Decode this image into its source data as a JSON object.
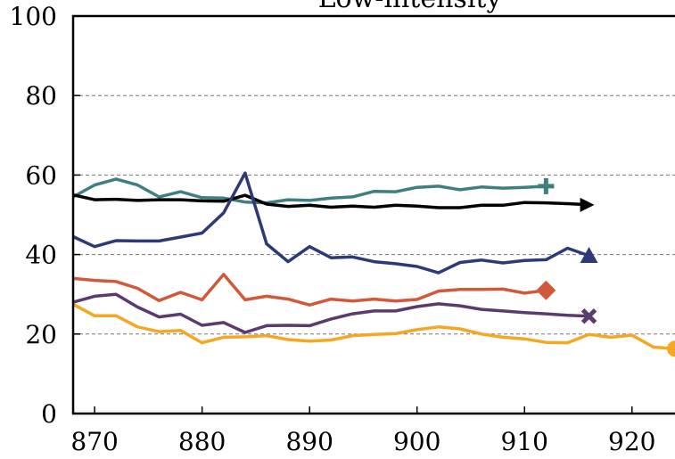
{
  "chart_data": {
    "type": "line",
    "title": "Low-intensity",
    "xlabel": "",
    "ylabel": "",
    "xlim": [
      868,
      924
    ],
    "ylim": [
      0,
      100
    ],
    "x_ticks": [
      870,
      880,
      890,
      900,
      910,
      920
    ],
    "y_ticks": [
      0,
      20,
      40,
      60,
      80,
      100
    ],
    "grid": "horizontal dashed at 20, 40, 60, 80",
    "series": [
      {
        "color": "#3E7F7F",
        "marker": "plus",
        "x": [
          868,
          870,
          872,
          874,
          876,
          878,
          880,
          882,
          884,
          886,
          888,
          890,
          892,
          894,
          896,
          898,
          900,
          902,
          904,
          906,
          908,
          910,
          912
        ],
        "y": [
          54.5,
          57.5,
          59,
          57.5,
          54.5,
          55.8,
          54.3,
          54.2,
          53.2,
          53,
          53.8,
          53.6,
          54.2,
          54.5,
          55.9,
          55.8,
          56.9,
          57.2,
          56.3,
          57,
          56.7,
          56.9,
          57.2
        ]
      },
      {
        "color": "#000000",
        "marker": "arrow",
        "x": [
          868,
          870,
          872,
          874,
          876,
          878,
          880,
          882,
          884,
          886,
          888,
          890,
          892,
          894,
          896,
          898,
          900,
          902,
          904,
          906,
          908,
          910,
          912,
          914,
          916
        ],
        "y": [
          55,
          53.8,
          53.9,
          53.6,
          53.8,
          53.8,
          53.5,
          53.4,
          54.9,
          52.7,
          52.1,
          52.4,
          51.9,
          52.2,
          51.9,
          52.4,
          52.2,
          51.8,
          51.8,
          52.4,
          52.4,
          53.1,
          53.0,
          52.8,
          52.5
        ]
      },
      {
        "color": "#2E3A78",
        "marker": "triangle",
        "x": [
          868,
          870,
          872,
          874,
          876,
          878,
          880,
          882,
          884,
          886,
          888,
          890,
          892,
          894,
          896,
          898,
          900,
          902,
          904,
          906,
          908,
          910,
          912,
          914,
          916
        ],
        "y": [
          44.5,
          42,
          43.5,
          43.4,
          43.4,
          44.4,
          45.4,
          50.5,
          60.5,
          42.7,
          38.2,
          42,
          39.2,
          39.4,
          38.2,
          37.7,
          37,
          35.4,
          38,
          38.6,
          37.9,
          38.5,
          38.7,
          41.6,
          39.7
        ]
      },
      {
        "color": "#D1583A",
        "marker": "diamond",
        "x": [
          868,
          870,
          872,
          874,
          876,
          878,
          880,
          882,
          884,
          886,
          888,
          890,
          892,
          894,
          896,
          898,
          900,
          902,
          904,
          906,
          908,
          910,
          912
        ],
        "y": [
          34,
          33.5,
          33.2,
          31.5,
          28.4,
          30.5,
          28.6,
          35,
          28.6,
          29.5,
          28.8,
          27.3,
          28.8,
          28.3,
          28.8,
          28.3,
          28.7,
          30.8,
          31.2,
          31.2,
          31.3,
          30.3,
          31.0
        ]
      },
      {
        "color": "#5B3A6E",
        "marker": "x",
        "x": [
          868,
          870,
          872,
          874,
          876,
          878,
          880,
          882,
          884,
          886,
          888,
          890,
          892,
          894,
          896,
          898,
          900,
          902,
          904,
          906,
          908,
          910,
          912,
          914,
          916
        ],
        "y": [
          28,
          29.5,
          30,
          26.8,
          24.3,
          25,
          22.2,
          22.9,
          20.4,
          22.1,
          22.2,
          22.1,
          23.8,
          25.1,
          25.8,
          25.8,
          26.9,
          27.6,
          27.1,
          26.2,
          25.8,
          25.4,
          25.1,
          24.7,
          24.5
        ]
      },
      {
        "color": "#F5A623",
        "marker": "circle",
        "x": [
          868,
          870,
          872,
          874,
          876,
          878,
          880,
          882,
          884,
          886,
          888,
          890,
          892,
          894,
          896,
          898,
          900,
          902,
          904,
          906,
          908,
          910,
          912,
          914,
          916,
          918,
          920,
          922,
          924
        ],
        "y": [
          27.5,
          24.6,
          24.6,
          21.8,
          20.6,
          20.9,
          17.8,
          19.2,
          19.3,
          19.6,
          18.6,
          18.2,
          18.5,
          19.6,
          19.9,
          20.1,
          21.1,
          21.8,
          21.3,
          20,
          19.2,
          18.8,
          17.9,
          17.8,
          19.9,
          19.2,
          19.7,
          16.7,
          16.3
        ]
      }
    ]
  }
}
